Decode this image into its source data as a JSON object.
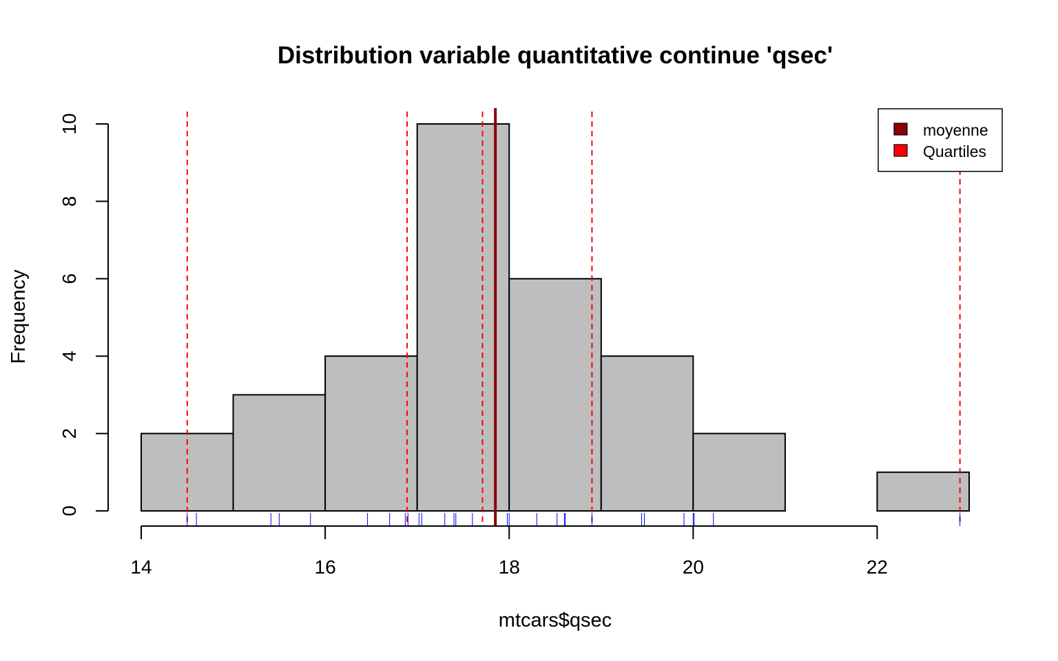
{
  "chart_data": {
    "type": "bar",
    "title": "Distribution  variable quantitative continue 'qsec'",
    "xlabel": "mtcars$qsec",
    "ylabel": "Frequency",
    "bins": [
      {
        "from": 14,
        "to": 15,
        "count": 2
      },
      {
        "from": 15,
        "to": 16,
        "count": 3
      },
      {
        "from": 16,
        "to": 17,
        "count": 4
      },
      {
        "from": 17,
        "to": 18,
        "count": 10
      },
      {
        "from": 18,
        "to": 19,
        "count": 6
      },
      {
        "from": 19,
        "to": 20,
        "count": 4
      },
      {
        "from": 20,
        "to": 21,
        "count": 2
      },
      {
        "from": 21,
        "to": 22,
        "count": 0
      },
      {
        "from": 22,
        "to": 23,
        "count": 1
      }
    ],
    "xlim": [
      14,
      23
    ],
    "ylim": [
      0,
      10
    ],
    "x_ticks": [
      14,
      16,
      18,
      20,
      22
    ],
    "y_ticks": [
      0,
      2,
      4,
      6,
      8,
      10
    ],
    "mean": 17.85,
    "quartiles": [
      14.5,
      16.89,
      17.71,
      18.9,
      22.9
    ],
    "rug": [
      14.5,
      14.6,
      15.41,
      15.5,
      15.84,
      16.46,
      16.7,
      16.87,
      16.9,
      17.02,
      17.05,
      17.3,
      17.4,
      17.42,
      17.6,
      17.98,
      18.0,
      18.3,
      18.52,
      18.6,
      18.61,
      18.9,
      19.44,
      19.47,
      19.9,
      20.0,
      20.01,
      20.22,
      22.9
    ],
    "legend": {
      "position": "top-right",
      "entries": [
        {
          "label": "moyenne",
          "color": "#8b0000"
        },
        {
          "label": "Quartiles",
          "color": "#ff0000"
        }
      ]
    },
    "colors": {
      "bar_fill": "#bebebe",
      "bar_stroke": "#000000",
      "mean_line": "#8b0000",
      "quartile_line": "#ff0000",
      "rug": "#0000ff"
    }
  }
}
